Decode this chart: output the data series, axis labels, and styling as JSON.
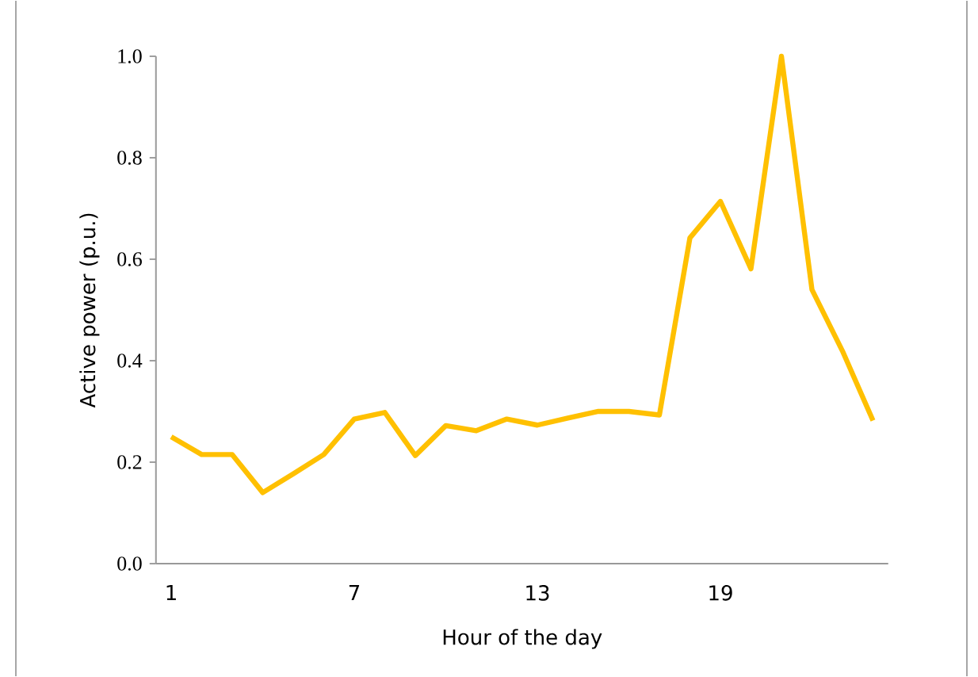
{
  "chart_data": {
    "type": "line",
    "xlabel": "Hour of the day",
    "ylabel": "Active power (p.u.)",
    "categories": [
      "1",
      null,
      null,
      null,
      null,
      null,
      "7",
      null,
      null,
      null,
      null,
      null,
      "13",
      null,
      null,
      null,
      null,
      null,
      "19",
      null,
      null,
      null,
      null,
      null
    ],
    "series": [
      {
        "color": "#ffc000",
        "values": [
          0.25,
          0.215,
          0.215,
          0.14,
          0.177,
          0.215,
          0.285,
          0.298,
          0.213,
          0.272,
          0.262,
          0.285,
          0.273,
          0.287,
          0.3,
          0.3,
          0.293,
          0.642,
          0.714,
          0.581,
          1.0,
          0.54,
          0.419,
          0.282
        ]
      }
    ],
    "ylim": [
      0,
      1
    ],
    "yticks": [
      {
        "value": 0,
        "label": "0.0"
      },
      0.2,
      0.4,
      0.6,
      0.8,
      {
        "value": 1,
        "label": "1.0"
      }
    ],
    "grid": false,
    "legend": false,
    "marker": "none",
    "line_style": "solid"
  }
}
